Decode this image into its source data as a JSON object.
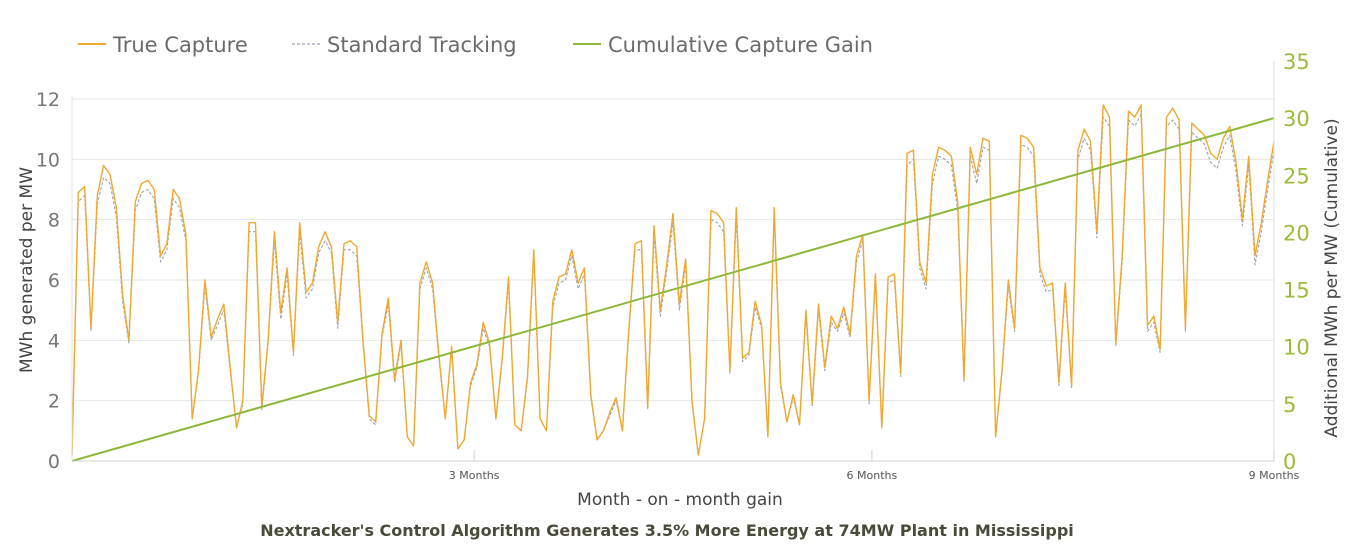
{
  "chart_data": {
    "type": "line",
    "title": "Nextracker's Control Algorithm Generates 3.5% More Energy at 74MW Plant in Mississippi",
    "xlabel": "Month - on - month gain",
    "ylabel_left": "MWh generated per MW",
    "ylabel_right": "Additional MWh per MW (Cumulative)",
    "x_ticks": [
      {
        "pos": 92,
        "label": "3 Months"
      },
      {
        "pos": 183,
        "label": "6 Months"
      },
      {
        "pos": 275,
        "label": "9 Months"
      }
    ],
    "x_range": [
      0,
      275
    ],
    "y_left_range": [
      0,
      12
    ],
    "y_left_ticks": [
      0,
      2,
      4,
      6,
      8,
      10,
      12
    ],
    "y_right_range": [
      0,
      35
    ],
    "y_right_ticks": [
      0,
      5,
      10,
      15,
      20,
      25,
      30,
      35
    ],
    "grid": true,
    "legend_position": "top-left",
    "series": [
      {
        "name": "True Capture",
        "axis": "left",
        "style": "solid",
        "color": "#f0a830",
        "values": [
          0.2,
          8.9,
          9.1,
          4.4,
          8.8,
          9.8,
          9.5,
          8.4,
          5.5,
          4.0,
          8.6,
          9.2,
          9.3,
          9.0,
          6.8,
          7.2,
          9.0,
          8.7,
          7.5,
          1.4,
          3.0,
          6.0,
          4.1,
          4.7,
          5.2,
          3.1,
          1.1,
          2.0,
          7.9,
          7.9,
          1.8,
          4.0,
          7.6,
          4.9,
          6.4,
          3.6,
          7.9,
          5.6,
          5.9,
          7.1,
          7.6,
          7.1,
          4.6,
          7.2,
          7.3,
          7.1,
          4.0,
          1.5,
          1.3,
          4.2,
          5.4,
          2.7,
          4.0,
          0.8,
          0.5,
          5.9,
          6.6,
          5.9,
          3.5,
          1.4,
          3.8,
          0.4,
          0.7,
          2.6,
          3.2,
          4.6,
          3.9,
          1.4,
          3.4,
          6.1,
          1.2,
          1.0,
          2.8,
          7.0,
          1.4,
          1.0,
          5.3,
          6.1,
          6.2,
          7.0,
          5.9,
          6.4,
          2.2,
          0.7,
          1.0,
          1.6,
          2.1,
          1.0,
          4.3,
          7.2,
          7.3,
          1.8,
          7.8,
          5.0,
          6.5,
          8.2,
          5.2,
          6.7,
          2.0,
          0.2,
          1.4,
          8.3,
          8.2,
          7.9,
          3.0,
          8.4,
          3.4,
          3.6,
          5.3,
          4.5,
          0.8,
          8.4,
          2.6,
          1.3,
          2.2,
          1.2,
          5.0,
          1.9,
          5.2,
          3.1,
          4.8,
          4.4,
          5.1,
          4.2,
          6.8,
          7.5,
          2.0,
          6.2,
          1.1,
          6.1,
          6.2,
          2.9,
          10.2,
          10.3,
          6.6,
          5.9,
          9.5,
          10.4,
          10.3,
          10.1,
          8.6,
          2.7,
          10.4,
          9.5,
          10.7,
          10.6,
          0.8,
          3.0,
          6.0,
          4.4,
          10.8,
          10.7,
          10.4,
          6.4,
          5.8,
          5.9,
          2.6,
          5.9,
          2.5,
          10.3,
          11.0,
          10.6,
          7.6,
          11.8,
          11.4,
          3.9,
          6.8,
          11.6,
          11.4,
          11.8,
          4.5,
          4.8,
          3.7,
          11.4,
          11.7,
          11.3,
          4.4,
          11.2,
          11.0,
          10.8,
          10.2,
          10.0,
          10.7,
          11.1,
          9.9,
          8.0,
          10.1,
          6.8,
          7.9,
          9.3,
          10.6
        ]
      },
      {
        "name": "Standard Tracking",
        "axis": "left",
        "style": "dashed",
        "color": "#9aa2b0",
        "values": [
          0.2,
          8.6,
          8.8,
          4.3,
          8.5,
          9.4,
          9.2,
          8.1,
          5.3,
          3.9,
          8.3,
          8.9,
          9.0,
          8.7,
          6.6,
          7.0,
          8.7,
          8.4,
          7.3,
          1.4,
          2.9,
          5.8,
          4.0,
          4.5,
          5.0,
          3.0,
          1.1,
          1.9,
          7.6,
          7.6,
          1.7,
          3.9,
          7.3,
          4.7,
          6.2,
          3.5,
          7.6,
          5.4,
          5.7,
          6.9,
          7.3,
          6.9,
          4.4,
          7.0,
          7.0,
          6.8,
          3.9,
          1.4,
          1.2,
          4.1,
          5.2,
          2.6,
          3.9,
          0.8,
          0.5,
          5.7,
          6.4,
          5.7,
          3.4,
          1.4,
          3.7,
          0.4,
          0.7,
          2.5,
          3.1,
          4.4,
          3.8,
          1.4,
          3.3,
          5.9,
          1.2,
          1.0,
          2.7,
          6.8,
          1.4,
          1.0,
          5.1,
          5.9,
          6.0,
          6.8,
          5.7,
          6.2,
          2.1,
          0.7,
          1.0,
          1.5,
          2.0,
          1.0,
          4.2,
          7.0,
          7.0,
          1.7,
          7.5,
          4.8,
          6.3,
          7.9,
          5.0,
          6.5,
          1.9,
          0.2,
          1.4,
          8.0,
          7.9,
          7.6,
          2.9,
          8.1,
          3.3,
          3.5,
          5.1,
          4.4,
          0.8,
          8.1,
          2.5,
          1.3,
          2.1,
          1.2,
          4.8,
          1.8,
          5.0,
          3.0,
          4.6,
          4.3,
          4.9,
          4.1,
          6.6,
          7.3,
          1.9,
          6.0,
          1.1,
          5.9,
          6.0,
          2.8,
          9.8,
          10.0,
          6.4,
          5.7,
          9.2,
          10.1,
          10.0,
          9.8,
          8.3,
          2.6,
          10.1,
          9.2,
          10.4,
          10.3,
          0.8,
          2.9,
          5.8,
          4.3,
          10.5,
          10.4,
          10.1,
          6.2,
          5.6,
          5.7,
          2.5,
          5.7,
          2.4,
          10.0,
          10.7,
          10.3,
          7.4,
          11.4,
          11.1,
          3.8,
          6.6,
          11.3,
          11.1,
          11.5,
          4.3,
          4.6,
          3.6,
          11.1,
          11.3,
          11.0,
          4.3,
          10.9,
          10.7,
          10.5,
          9.9,
          9.7,
          10.4,
          10.8,
          9.6,
          7.8,
          9.8,
          6.5,
          7.6,
          9.0,
          10.3
        ]
      },
      {
        "name": "Cumulative Capture Gain",
        "axis": "right",
        "style": "solid",
        "color": "#8cb83a",
        "x": [
          0,
          275
        ],
        "values": [
          0,
          30
        ]
      }
    ]
  }
}
